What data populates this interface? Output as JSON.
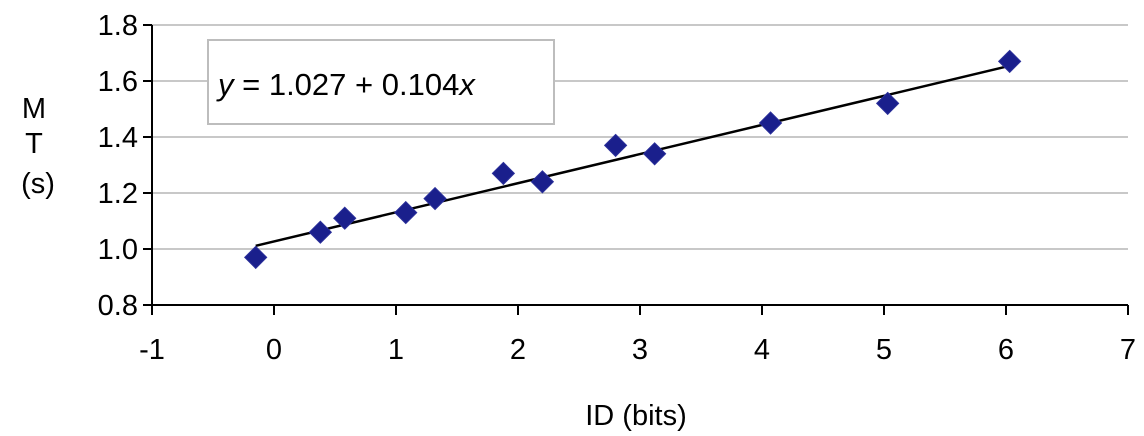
{
  "chart_data": {
    "type": "scatter",
    "xlabel": "ID (bits)",
    "ylabel_lines": [
      "M",
      "T",
      "(s)"
    ],
    "xlim": [
      -1,
      7
    ],
    "ylim": [
      0.8,
      1.8
    ],
    "x_ticks": [
      -1,
      0,
      1,
      2,
      3,
      4,
      5,
      6,
      7
    ],
    "x_tick_labels": [
      "-1",
      "0",
      "1",
      "2",
      "3",
      "4",
      "5",
      "6",
      "7"
    ],
    "y_ticks": [
      0.8,
      1.0,
      1.2,
      1.4,
      1.6,
      1.8
    ],
    "y_tick_labels": [
      "0.8",
      "1.0",
      "1.2",
      "1.4",
      "1.6",
      "1.8"
    ],
    "grid": {
      "horizontal": true,
      "vertical": false
    },
    "series": [
      {
        "marker": "diamond",
        "color": "#1a1f8c",
        "points": [
          {
            "x": -0.15,
            "y": 0.97
          },
          {
            "x": 0.38,
            "y": 1.06
          },
          {
            "x": 0.58,
            "y": 1.11
          },
          {
            "x": 1.08,
            "y": 1.13
          },
          {
            "x": 1.32,
            "y": 1.18
          },
          {
            "x": 1.88,
            "y": 1.27
          },
          {
            "x": 2.2,
            "y": 1.24
          },
          {
            "x": 2.8,
            "y": 1.37
          },
          {
            "x": 3.12,
            "y": 1.34
          },
          {
            "x": 4.07,
            "y": 1.45
          },
          {
            "x": 5.03,
            "y": 1.52
          },
          {
            "x": 6.03,
            "y": 1.67
          }
        ]
      }
    ],
    "trendline": {
      "intercept": 1.027,
      "slope": 0.104,
      "x_range": [
        -0.15,
        6.03
      ],
      "color": "#000000"
    },
    "equation": {
      "lhs": "y",
      "rhs_main": " = 1.027 + 0.104",
      "rhs_var": "x"
    }
  }
}
